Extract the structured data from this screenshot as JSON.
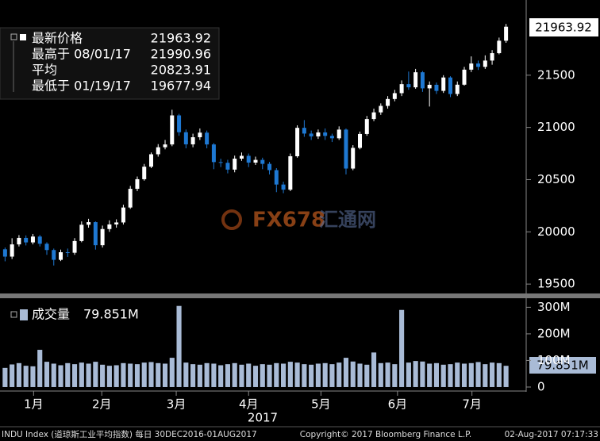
{
  "chart_data": [
    {
      "type": "candlestick",
      "legend": [
        {
          "label": "最新价格",
          "value": 21963.92
        },
        {
          "label": "最高于 08/01/17",
          "value": 21990.96
        },
        {
          "label": "平均",
          "value": 20823.91
        },
        {
          "label": "最低于 01/19/17",
          "value": 19677.94
        }
      ],
      "open": [
        19833,
        19763,
        19880,
        19942,
        19899,
        19955,
        19886,
        19826,
        19732,
        19805,
        19800,
        19912,
        20068,
        20093,
        19872,
        20027,
        20071,
        20090,
        20233,
        20412,
        20504,
        20624,
        20743,
        20810,
        20837,
        21115,
        20954,
        20838,
        20906,
        20950,
        20837,
        20668,
        20661,
        20596,
        20701,
        20728,
        20663,
        20689,
        20651,
        20591,
        20453,
        20404,
        20724,
        20996,
        20941,
        20914,
        20952,
        20919,
        20896,
        20979,
        20606,
        20804,
        20937,
        21080,
        21144,
        21206,
        21272,
        21328,
        21414,
        21384,
        21528,
        21374,
        21408,
        21350,
        21478,
        21320,
        21409,
        21553,
        21612,
        21580,
        21640,
        21711,
        21830
      ],
      "high": [
        19850,
        19939,
        19969,
        19966,
        19980,
        19970,
        19900,
        19840,
        19830,
        19840,
        19940,
        20100,
        20125,
        20100,
        20060,
        20110,
        20120,
        20260,
        20440,
        20530,
        20650,
        20760,
        20840,
        20880,
        21169,
        21130,
        20980,
        20940,
        20990,
        20970,
        20850,
        20700,
        20690,
        20730,
        20760,
        20750,
        20720,
        20710,
        20670,
        20610,
        20480,
        20750,
        21020,
        21070,
        20970,
        20980,
        20990,
        20940,
        21010,
        20990,
        20830,
        20960,
        21110,
        21180,
        21230,
        21300,
        21360,
        21450,
        21535,
        21560,
        21540,
        21440,
        21430,
        21500,
        21490,
        21440,
        21580,
        21680,
        21640,
        21690,
        21740,
        21860,
        21990.96
      ],
      "low": [
        19718,
        19740,
        19860,
        19870,
        19880,
        19860,
        19780,
        19677.94,
        19720,
        19760,
        19780,
        19900,
        20040,
        19830,
        19850,
        20000,
        20040,
        20070,
        20220,
        20390,
        20490,
        20610,
        20720,
        20790,
        20820,
        20920,
        20800,
        20810,
        20880,
        20800,
        20600,
        20620,
        20560,
        20570,
        20680,
        20620,
        20640,
        20600,
        20550,
        20380,
        20370,
        20390,
        20710,
        20910,
        20880,
        20890,
        20880,
        20860,
        20880,
        20550,
        20590,
        20790,
        20920,
        21060,
        21120,
        21180,
        21250,
        21300,
        21360,
        21370,
        21340,
        21200,
        21320,
        21330,
        21290,
        21300,
        21400,
        21530,
        21550,
        21560,
        21600,
        21700,
        21810
      ],
      "close": [
        19763,
        19880,
        19942,
        19899,
        19955,
        19886,
        19826,
        19732,
        19805,
        19800,
        19912,
        20068,
        20093,
        19872,
        20027,
        20071,
        20090,
        20233,
        20412,
        20504,
        20624,
        20743,
        20810,
        20837,
        21115,
        20954,
        20838,
        20906,
        20950,
        20837,
        20668,
        20661,
        20596,
        20701,
        20728,
        20663,
        20689,
        20651,
        20591,
        20453,
        20404,
        20724,
        20996,
        20941,
        20914,
        20952,
        20919,
        20896,
        20979,
        20606,
        20804,
        20937,
        21080,
        21144,
        21206,
        21272,
        21328,
        21414,
        21384,
        21528,
        21374,
        21408,
        21350,
        21478,
        21320,
        21409,
        21553,
        21612,
        21580,
        21640,
        21711,
        21830,
        21963.92
      ],
      "up_color": "#ffffff",
      "down_color": "#1e78d2",
      "ylim": [
        19410,
        22220
      ],
      "yticks": [
        19500,
        20000,
        20500,
        21000,
        21500
      ]
    },
    {
      "type": "bar",
      "name": "成交量",
      "values": [
        72,
        85,
        90,
        80,
        78,
        140,
        95,
        88,
        82,
        90,
        86,
        92,
        88,
        95,
        84,
        80,
        82,
        90,
        88,
        86,
        92,
        94,
        90,
        88,
        110,
        305,
        92,
        86,
        84,
        90,
        88,
        82,
        86,
        90,
        84,
        88,
        80,
        86,
        84,
        90,
        88,
        95,
        92,
        86,
        84,
        88,
        90,
        86,
        92,
        110,
        96,
        88,
        84,
        130,
        90,
        92,
        86,
        290,
        92,
        98,
        96,
        88,
        90,
        84,
        86,
        92,
        88,
        90,
        94,
        86,
        92,
        90,
        79.851
      ],
      "last_value_label": "79.851M",
      "color": "#a9bbd6",
      "ylim": [
        -12,
        328
      ],
      "yticks": [
        0,
        {
          "value": 100,
          "label": "100M"
        },
        {
          "value": 200,
          "label": "200M"
        },
        {
          "value": 300,
          "label": "300M"
        }
      ],
      "xticks": [
        {
          "value": 4.1,
          "label": "1月"
        },
        {
          "value": 13.9,
          "label": "2月"
        },
        {
          "value": 24.6,
          "label": "3月"
        },
        {
          "value": 35.0,
          "label": "4月"
        },
        {
          "value": 45.4,
          "label": "5月"
        },
        {
          "value": 56.4,
          "label": "6月"
        },
        {
          "value": 67.1,
          "label": "7月"
        }
      ],
      "xlabel": "2017"
    }
  ],
  "watermark": {
    "brand": "FX678",
    "site": "汇通网"
  },
  "footer": {
    "left": "INDU Index (道琼斯工业平均指数) 每日 30DEC2016-01AUG2017",
    "center": "Copyright© 2017 Bloomberg Finance L.P.",
    "right": "02-Aug-2017 07:17:33"
  }
}
